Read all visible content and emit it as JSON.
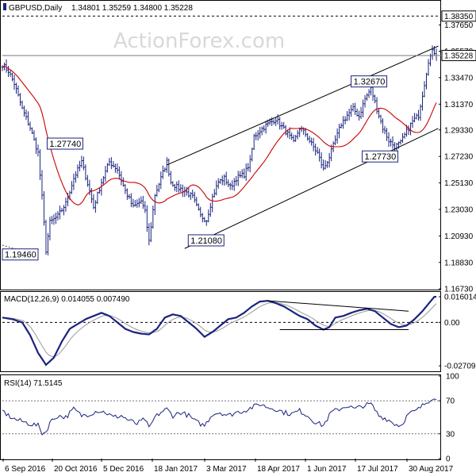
{
  "chart_data": {
    "type": "ohlc",
    "watermark": "ActionForex.com",
    "symbol_header": "GBPUSD,Daily",
    "ohlc_header": "1.34801 1.35259 1.34800 1.35228",
    "x_tick_labels": [
      "6 Sep 2016",
      "20 Oct 2016",
      "5 Dec 2016",
      "18 Jan 2017",
      "3 Mar 2017",
      "18 Apr 2017",
      "1 Jun 2017",
      "17 Jul 2017",
      "30 Aug 2017"
    ],
    "price_panel": {
      "ylim": [
        1.1674,
        1.395
      ],
      "tick_labels": [
        "1.37650",
        "1.35570",
        "1.33470",
        "1.31370",
        "1.29330",
        "1.27230",
        "1.25130",
        "1.23030",
        "1.20930",
        "1.18830",
        "1.16730"
      ],
      "tick_values": [
        1.3765,
        1.3557,
        1.3347,
        1.3137,
        1.2933,
        1.2723,
        1.2513,
        1.2303,
        1.2093,
        1.1883,
        1.1673
      ],
      "highlight_labels": [
        "1.38350",
        "1.35228"
      ],
      "highlight_values": [
        1.3835,
        1.35228
      ],
      "callouts": [
        {
          "label": "1.27740",
          "value": 1.2774
        },
        {
          "label": "1.19460",
          "value": 1.1946
        },
        {
          "label": "1.21080",
          "value": 1.2108
        },
        {
          "label": "1.32670",
          "value": 1.3267
        },
        {
          "label": "1.27730",
          "value": 1.2773
        }
      ],
      "series": [
        {
          "type": "ohlc",
          "color": "#1a237e"
        },
        {
          "type": "moving_average",
          "color": "#cc0000"
        }
      ],
      "anchors": [
        [
          0,
          1.345
        ],
        [
          3,
          1.34
        ],
        [
          6,
          1.33
        ],
        [
          10,
          1.31
        ],
        [
          14,
          1.295
        ],
        [
          18,
          1.275
        ],
        [
          20,
          1.24
        ],
        [
          22,
          1.198
        ],
        [
          24,
          1.22
        ],
        [
          28,
          1.225
        ],
        [
          32,
          1.235
        ],
        [
          36,
          1.255
        ],
        [
          40,
          1.268
        ],
        [
          44,
          1.245
        ],
        [
          46,
          1.232
        ],
        [
          50,
          1.252
        ],
        [
          54,
          1.268
        ],
        [
          58,
          1.262
        ],
        [
          62,
          1.245
        ],
        [
          66,
          1.232
        ],
        [
          70,
          1.237
        ],
        [
          72,
          1.228
        ],
        [
          74,
          1.205
        ],
        [
          77,
          1.242
        ],
        [
          80,
          1.255
        ],
        [
          83,
          1.268
        ],
        [
          85,
          1.252
        ],
        [
          88,
          1.248
        ],
        [
          92,
          1.245
        ],
        [
          96,
          1.24
        ],
        [
          100,
          1.225
        ],
        [
          103,
          1.222
        ],
        [
          106,
          1.24
        ],
        [
          109,
          1.252
        ],
        [
          112,
          1.255
        ],
        [
          115,
          1.248
        ],
        [
          118,
          1.255
        ],
        [
          122,
          1.258
        ],
        [
          125,
          1.268
        ],
        [
          127,
          1.288
        ],
        [
          130,
          1.293
        ],
        [
          134,
          1.298
        ],
        [
          138,
          1.302
        ],
        [
          141,
          1.296
        ],
        [
          144,
          1.29
        ],
        [
          147,
          1.283
        ],
        [
          150,
          1.295
        ],
        [
          153,
          1.29
        ],
        [
          156,
          1.282
        ],
        [
          159,
          1.275
        ],
        [
          162,
          1.262
        ],
        [
          165,
          1.272
        ],
        [
          168,
          1.285
        ],
        [
          171,
          1.298
        ],
        [
          174,
          1.305
        ],
        [
          177,
          1.31
        ],
        [
          180,
          1.304
        ],
        [
          183,
          1.318
        ],
        [
          186,
          1.326
        ],
        [
          189,
          1.31
        ],
        [
          192,
          1.295
        ],
        [
          195,
          1.285
        ],
        [
          198,
          1.28
        ],
        [
          201,
          1.283
        ],
        [
          204,
          1.292
        ],
        [
          207,
          1.3
        ],
        [
          210,
          1.305
        ],
        [
          213,
          1.33
        ],
        [
          215,
          1.348
        ],
        [
          217,
          1.355
        ]
      ],
      "trendlines": [
        {
          "from": [
            83,
            1.2655
          ],
          "to": [
            220,
            1.3597
          ],
          "color": "#000000"
        },
        {
          "from": [
            92,
            1.1993
          ],
          "to": [
            220,
            1.2945
          ],
          "color": "#000000"
        },
        {
          "from": [
            0,
            1.202
          ],
          "to": [
            16,
            1.1946
          ],
          "color": "#555555",
          "dashed": true
        }
      ]
    },
    "macd_panel": {
      "title": "MACD(12,26,9) 0.014055 0.007490",
      "ylim": [
        -0.03,
        0.0185
      ],
      "tick_labels": [
        "0.016014",
        "0.00",
        "-0.027097"
      ],
      "tick_values": [
        0.016014,
        0,
        -0.027097
      ],
      "series": [
        {
          "name": "MACD",
          "color": "#1a237e"
        },
        {
          "name": "Signal",
          "color": "#999999"
        }
      ],
      "anchors": [
        [
          0,
          0.003
        ],
        [
          5,
          0.002
        ],
        [
          10,
          0.0
        ],
        [
          14,
          -0.008
        ],
        [
          18,
          -0.019
        ],
        [
          22,
          -0.0265
        ],
        [
          26,
          -0.022
        ],
        [
          30,
          -0.012
        ],
        [
          34,
          -0.004
        ],
        [
          38,
          -0.001
        ],
        [
          42,
          0.002
        ],
        [
          46,
          0.004
        ],
        [
          50,
          0.006
        ],
        [
          54,
          0.004
        ],
        [
          58,
          0.0
        ],
        [
          62,
          -0.004
        ],
        [
          66,
          -0.006
        ],
        [
          70,
          -0.007
        ],
        [
          74,
          -0.0075
        ],
        [
          78,
          -0.004
        ],
        [
          82,
          0.003
        ],
        [
          86,
          0.005
        ],
        [
          90,
          0.004
        ],
        [
          94,
          0.0
        ],
        [
          98,
          -0.004
        ],
        [
          102,
          -0.009
        ],
        [
          106,
          -0.006
        ],
        [
          110,
          -0.002
        ],
        [
          114,
          0.002
        ],
        [
          118,
          0.003
        ],
        [
          122,
          0.006
        ],
        [
          126,
          0.01
        ],
        [
          130,
          0.013
        ],
        [
          134,
          0.0135
        ],
        [
          138,
          0.012
        ],
        [
          142,
          0.01
        ],
        [
          146,
          0.007
        ],
        [
          150,
          0.004
        ],
        [
          154,
          0.002
        ],
        [
          158,
          -0.002
        ],
        [
          162,
          -0.0045
        ],
        [
          165,
          -0.003
        ],
        [
          168,
          0.003
        ],
        [
          172,
          0.004
        ],
        [
          176,
          0.006
        ],
        [
          180,
          0.0075
        ],
        [
          184,
          0.0085
        ],
        [
          188,
          0.007
        ],
        [
          192,
          0.003
        ],
        [
          196,
          -0.001
        ],
        [
          200,
          -0.003
        ],
        [
          204,
          -0.002
        ],
        [
          208,
          0.002
        ],
        [
          212,
          0.007
        ],
        [
          216,
          0.013
        ],
        [
          218,
          0.016
        ]
      ],
      "trendlines": [
        {
          "from": [
            134,
            0.0135
          ],
          "to": [
            205,
            0.007
          ],
          "color": "#000000"
        },
        {
          "from": [
            140,
            -0.0045
          ],
          "to": [
            205,
            -0.0045
          ],
          "color": "#000000"
        }
      ]
    },
    "rsi_panel": {
      "title": "RSI(14) 71.5145",
      "ylim": [
        0,
        100
      ],
      "tick_labels": [
        "100",
        "70",
        "30",
        "0"
      ],
      "tick_values": [
        100,
        70,
        30,
        0
      ],
      "levels": [
        70,
        30
      ],
      "series": [
        {
          "name": "RSI(14)",
          "color": "#1a237e"
        }
      ],
      "anchors": [
        [
          0,
          58
        ],
        [
          3,
          52
        ],
        [
          6,
          48
        ],
        [
          10,
          45
        ],
        [
          14,
          42
        ],
        [
          18,
          40
        ],
        [
          20,
          31
        ],
        [
          22,
          32
        ],
        [
          24,
          44
        ],
        [
          28,
          52
        ],
        [
          32,
          50
        ],
        [
          36,
          60
        ],
        [
          40,
          52
        ],
        [
          44,
          54
        ],
        [
          48,
          58
        ],
        [
          52,
          56
        ],
        [
          56,
          50
        ],
        [
          60,
          52
        ],
        [
          64,
          46
        ],
        [
          68,
          42
        ],
        [
          72,
          48
        ],
        [
          74,
          36
        ],
        [
          77,
          50
        ],
        [
          80,
          56
        ],
        [
          83,
          60
        ],
        [
          86,
          52
        ],
        [
          90,
          56
        ],
        [
          94,
          52
        ],
        [
          98,
          44
        ],
        [
          102,
          40
        ],
        [
          106,
          54
        ],
        [
          110,
          56
        ],
        [
          114,
          52
        ],
        [
          118,
          56
        ],
        [
          122,
          58
        ],
        [
          126,
          62
        ],
        [
          130,
          66
        ],
        [
          134,
          62
        ],
        [
          138,
          60
        ],
        [
          142,
          56
        ],
        [
          146,
          54
        ],
        [
          150,
          58
        ],
        [
          154,
          52
        ],
        [
          158,
          44
        ],
        [
          162,
          40
        ],
        [
          166,
          56
        ],
        [
          170,
          60
        ],
        [
          174,
          64
        ],
        [
          178,
          60
        ],
        [
          182,
          64
        ],
        [
          186,
          66
        ],
        [
          190,
          52
        ],
        [
          194,
          48
        ],
        [
          198,
          42
        ],
        [
          201,
          40
        ],
        [
          205,
          54
        ],
        [
          209,
          58
        ],
        [
          213,
          66
        ],
        [
          216,
          72
        ],
        [
          218,
          75
        ],
        [
          219,
          71.5
        ]
      ]
    }
  }
}
